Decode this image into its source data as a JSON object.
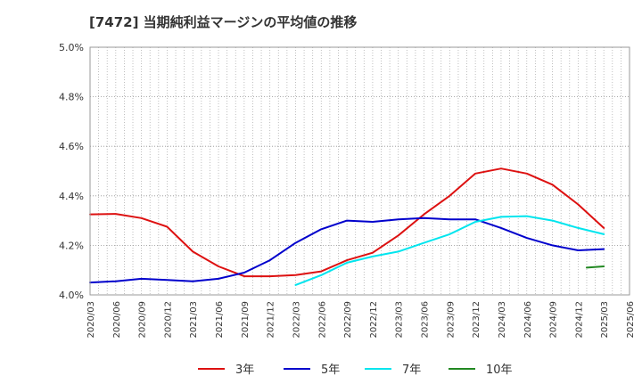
{
  "chart_data": {
    "type": "line",
    "title": "[7472]  当期純利益マージンの平均値の推移",
    "xlabel": "",
    "ylabel": "",
    "ylim": [
      4.0,
      5.0
    ],
    "y_ticks": [
      "4.0%",
      "4.2%",
      "4.4%",
      "4.6%",
      "4.8%",
      "5.0%"
    ],
    "x_ticks": [
      "2020/03",
      "2020/06",
      "2020/09",
      "2020/12",
      "2021/03",
      "2021/06",
      "2021/09",
      "2021/12",
      "2022/03",
      "2022/06",
      "2022/09",
      "2022/12",
      "2023/03",
      "2023/06",
      "2023/09",
      "2023/12",
      "2024/03",
      "2024/06",
      "2024/09",
      "2024/12",
      "2025/03",
      "2025/06"
    ],
    "grid": true,
    "legend": "bottom",
    "series": [
      {
        "name": "3年",
        "color": "#dd1111",
        "points": [
          [
            "2020/03",
            4.325
          ],
          [
            "2020/06",
            4.327
          ],
          [
            "2020/09",
            4.31
          ],
          [
            "2020/12",
            4.275
          ],
          [
            "2021/03",
            4.175
          ],
          [
            "2021/06",
            4.115
          ],
          [
            "2021/09",
            4.075
          ],
          [
            "2021/12",
            4.075
          ],
          [
            "2022/03",
            4.08
          ],
          [
            "2022/06",
            4.095
          ],
          [
            "2022/09",
            4.14
          ],
          [
            "2022/12",
            4.17
          ],
          [
            "2023/03",
            4.24
          ],
          [
            "2023/06",
            4.325
          ],
          [
            "2023/09",
            4.4
          ],
          [
            "2023/12",
            4.49
          ],
          [
            "2024/03",
            4.51
          ],
          [
            "2024/06",
            4.49
          ],
          [
            "2024/09",
            4.445
          ],
          [
            "2024/12",
            4.365
          ],
          [
            "2025/03",
            4.27
          ]
        ]
      },
      {
        "name": "5年",
        "color": "#0000cc",
        "points": [
          [
            "2020/03",
            4.05
          ],
          [
            "2020/06",
            4.055
          ],
          [
            "2020/09",
            4.065
          ],
          [
            "2020/12",
            4.06
          ],
          [
            "2021/03",
            4.055
          ],
          [
            "2021/06",
            4.065
          ],
          [
            "2021/09",
            4.09
          ],
          [
            "2021/12",
            4.14
          ],
          [
            "2022/03",
            4.21
          ],
          [
            "2022/06",
            4.265
          ],
          [
            "2022/09",
            4.3
          ],
          [
            "2022/12",
            4.295
          ],
          [
            "2023/03",
            4.305
          ],
          [
            "2023/06",
            4.31
          ],
          [
            "2023/09",
            4.305
          ],
          [
            "2023/12",
            4.305
          ],
          [
            "2024/03",
            4.27
          ],
          [
            "2024/06",
            4.23
          ],
          [
            "2024/09",
            4.2
          ],
          [
            "2024/12",
            4.18
          ],
          [
            "2025/03",
            4.185
          ]
        ]
      },
      {
        "name": "7年",
        "color": "#00e5ee",
        "points": [
          [
            "2022/03",
            4.04
          ],
          [
            "2022/06",
            4.08
          ],
          [
            "2022/09",
            4.13
          ],
          [
            "2022/12",
            4.155
          ],
          [
            "2023/03",
            4.175
          ],
          [
            "2023/06",
            4.21
          ],
          [
            "2023/09",
            4.245
          ],
          [
            "2023/12",
            4.295
          ],
          [
            "2024/03",
            4.315
          ],
          [
            "2024/06",
            4.318
          ],
          [
            "2024/09",
            4.3
          ],
          [
            "2024/12",
            4.27
          ],
          [
            "2025/03",
            4.245
          ]
        ]
      },
      {
        "name": "10年",
        "color": "#228822",
        "points": [
          [
            "2025/01",
            4.11
          ],
          [
            "2025/03",
            4.115
          ]
        ]
      }
    ]
  }
}
